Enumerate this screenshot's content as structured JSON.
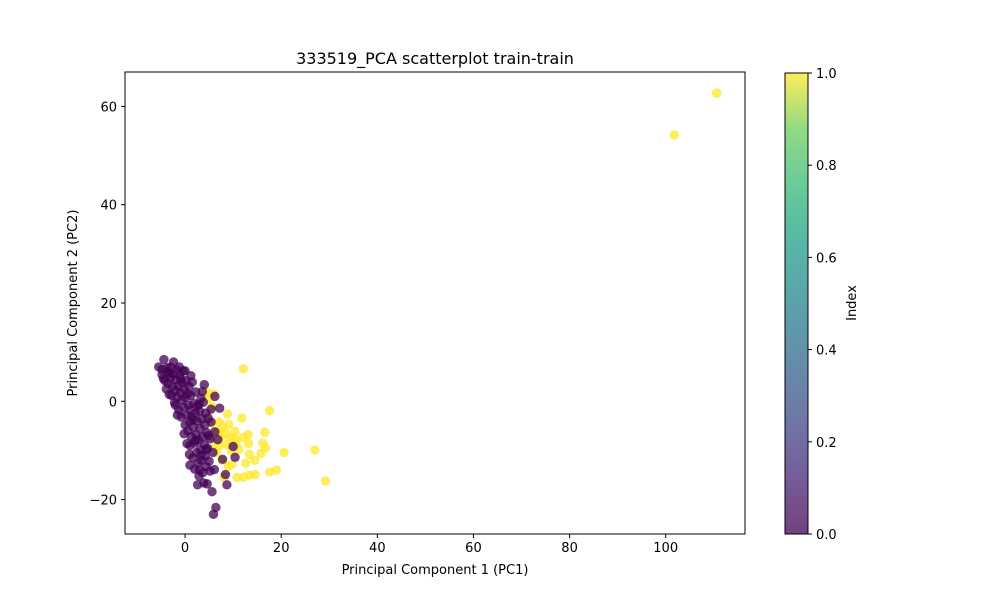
{
  "chart_data": {
    "type": "scatter",
    "title": "333519_PCA scatterplot train-train",
    "xlabel": "Principal Component 1 (PC1)",
    "ylabel": "Principal Component 2 (PC2)",
    "xlim": [
      -12.5,
      116.5
    ],
    "ylim": [
      -27,
      67
    ],
    "xticks": [
      0,
      20,
      40,
      60,
      80,
      100
    ],
    "yticks": [
      -20,
      0,
      20,
      40,
      60
    ],
    "grid": false,
    "legend": "none",
    "colormap": "viridis",
    "colorbar": {
      "label": "Index",
      "range": [
        0,
        1
      ],
      "ticks": [
        "0.0",
        "0.2",
        "0.4",
        "0.6",
        "0.8",
        "1.0"
      ]
    },
    "point_alpha": 0.75,
    "series": [
      {
        "color_value": 1,
        "points": [
          [
            110.6,
            62.7
          ],
          [
            101.8,
            54.2
          ],
          [
            12.1,
            6.6
          ],
          [
            17.6,
            -1.9
          ],
          [
            29.2,
            -16.2
          ],
          [
            27.0,
            -9.9
          ],
          [
            20.6,
            -10.4
          ],
          [
            17.6,
            -14.4
          ],
          [
            19.0,
            -14.0
          ],
          [
            14.6,
            -14.9
          ],
          [
            13.4,
            -15.0
          ],
          [
            12.2,
            -15.4
          ],
          [
            16.7,
            -9.5
          ],
          [
            15.8,
            -10.6
          ],
          [
            16.2,
            -8.5
          ],
          [
            16.6,
            -6.3
          ],
          [
            13.4,
            -10.8
          ],
          [
            13.2,
            -8.6
          ],
          [
            12.0,
            -7.4
          ],
          [
            11.8,
            -3.4
          ],
          [
            13.1,
            -6.8
          ],
          [
            10.3,
            -7.6
          ],
          [
            10.6,
            -8.6
          ],
          [
            9.6,
            -10.1
          ],
          [
            9.4,
            -7.4
          ],
          [
            9.1,
            -4.7
          ],
          [
            8.4,
            -6.5
          ],
          [
            7.8,
            -5.3
          ],
          [
            7.5,
            -7.2
          ],
          [
            7.2,
            -9.0
          ],
          [
            6.6,
            -10.4
          ],
          [
            6.3,
            -6.3
          ],
          [
            7.8,
            -12.0
          ],
          [
            9.0,
            -13.3
          ],
          [
            8.1,
            -15.5
          ],
          [
            10.8,
            -15.5
          ],
          [
            5.6,
            -4.4
          ],
          [
            6.2,
            -8.6
          ],
          [
            7.1,
            -4.2
          ],
          [
            5.7,
            -1.1
          ],
          [
            4.9,
            0.5
          ],
          [
            4.6,
            1.8
          ],
          [
            6.0,
            1.5
          ],
          [
            7.0,
            -6.0
          ],
          [
            8.6,
            -8.8
          ],
          [
            9.8,
            -12.8
          ],
          [
            11.2,
            -9.8
          ],
          [
            12.6,
            -12.6
          ],
          [
            14.5,
            -12.0
          ],
          [
            8.8,
            -2.6
          ],
          [
            10.4,
            -6.1
          ]
        ]
      },
      {
        "color_value": 0,
        "points": [
          [
            -5.5,
            7.0
          ],
          [
            -4.8,
            5.4
          ],
          [
            -4.4,
            8.5
          ],
          [
            -4.8,
            6.5
          ],
          [
            -4.2,
            4.2
          ],
          [
            -3.9,
            2.5
          ],
          [
            -3.6,
            6.0
          ],
          [
            -3.5,
            3.6
          ],
          [
            -3.0,
            7.0
          ],
          [
            -3.0,
            4.8
          ],
          [
            -2.8,
            1.2
          ],
          [
            -2.6,
            3.0
          ],
          [
            -2.5,
            5.6
          ],
          [
            -2.2,
            -0.3
          ],
          [
            -2.0,
            2.2
          ],
          [
            -1.9,
            4.4
          ],
          [
            -1.8,
            6.4
          ],
          [
            -1.6,
            0.8
          ],
          [
            -1.4,
            3.2
          ],
          [
            -1.3,
            -1.8
          ],
          [
            -1.1,
            5.2
          ],
          [
            -1.0,
            1.8
          ],
          [
            -0.8,
            -3.2
          ],
          [
            -0.7,
            0.2
          ],
          [
            -0.6,
            3.8
          ],
          [
            -0.4,
            6.2
          ],
          [
            -0.3,
            -1.2
          ],
          [
            -0.1,
            2.4
          ],
          [
            0.0,
            -4.8
          ],
          [
            0.1,
            0.8
          ],
          [
            0.2,
            4.2
          ],
          [
            0.3,
            -2.8
          ],
          [
            0.5,
            1.5
          ],
          [
            0.6,
            -6.0
          ],
          [
            0.7,
            -0.8
          ],
          [
            0.8,
            3.0
          ],
          [
            0.9,
            -4.2
          ],
          [
            1.0,
            -9.0
          ],
          [
            1.1,
            -1.8
          ],
          [
            1.2,
            1.2
          ],
          [
            1.3,
            -7.2
          ],
          [
            1.4,
            -3.2
          ],
          [
            1.5,
            3.9
          ],
          [
            1.6,
            -11.5
          ],
          [
            1.7,
            -5.3
          ],
          [
            1.8,
            -0.4
          ],
          [
            1.9,
            -8.5
          ],
          [
            2.0,
            -13.8
          ],
          [
            2.1,
            -2.4
          ],
          [
            2.2,
            1.9
          ],
          [
            2.3,
            -6.8
          ],
          [
            2.4,
            -10.4
          ],
          [
            2.5,
            -4.0
          ],
          [
            2.6,
            -0.9
          ],
          [
            2.7,
            -12.6
          ],
          [
            2.8,
            -7.9
          ],
          [
            2.9,
            -15.2
          ],
          [
            3.0,
            -2.0
          ],
          [
            3.1,
            -5.5
          ],
          [
            3.2,
            -9.8
          ],
          [
            3.3,
            0.6
          ],
          [
            3.4,
            -12.0
          ],
          [
            3.5,
            -3.6
          ],
          [
            3.6,
            -7.2
          ],
          [
            3.7,
            -14.5
          ],
          [
            3.8,
            -0.2
          ],
          [
            3.9,
            -16.6
          ],
          [
            4.0,
            -8.8
          ],
          [
            4.1,
            -4.8
          ],
          [
            4.2,
            -11.2
          ],
          [
            4.3,
            -2.4
          ],
          [
            4.4,
            -13.3
          ],
          [
            4.5,
            -6.4
          ],
          [
            4.6,
            -16.8
          ],
          [
            4.7,
            -9.6
          ],
          [
            4.8,
            -3.4
          ],
          [
            5.0,
            -12.2
          ],
          [
            5.2,
            -7.6
          ],
          [
            5.4,
            -4.2
          ],
          [
            5.6,
            -18.4
          ],
          [
            5.8,
            -10.4
          ],
          [
            5.9,
            -23.0
          ],
          [
            6.1,
            -13.9
          ],
          [
            6.4,
            -21.6
          ],
          [
            6.8,
            -7.8
          ],
          [
            7.2,
            -1.4
          ],
          [
            7.8,
            -11.8
          ],
          [
            8.4,
            -14.9
          ],
          [
            8.7,
            -17.0
          ],
          [
            10.0,
            -9.2
          ],
          [
            10.4,
            -11.4
          ],
          [
            6.2,
            1.0
          ],
          [
            5.4,
            -1.6
          ],
          [
            4.0,
            3.4
          ],
          [
            0.0,
            6.2
          ],
          [
            -2.4,
            8.0
          ],
          [
            -3.8,
            6.8
          ],
          [
            -4.5,
            4.6
          ],
          [
            -3.3,
            1.4
          ],
          [
            -1.6,
            -2.8
          ],
          [
            -0.2,
            -6.6
          ],
          [
            0.4,
            -8.6
          ],
          [
            2.6,
            -17.0
          ],
          [
            3.3,
            -11.0
          ],
          [
            1.6,
            -3.8
          ],
          [
            2.9,
            -0.6
          ],
          [
            4.4,
            -9.8
          ],
          [
            3.6,
            2.0
          ],
          [
            1.2,
            5.2
          ],
          [
            -0.9,
            4.6
          ],
          [
            -2.0,
            -0.8
          ],
          [
            0.9,
            -10.8
          ],
          [
            3.0,
            -14.0
          ],
          [
            4.9,
            -7.0
          ],
          [
            5.2,
            -14.2
          ],
          [
            2.2,
            -8.0
          ],
          [
            6.2,
            -6.2
          ],
          [
            -3.2,
            5.6
          ],
          [
            -1.2,
            7.0
          ],
          [
            1.0,
            -13.0
          ]
        ]
      }
    ]
  }
}
